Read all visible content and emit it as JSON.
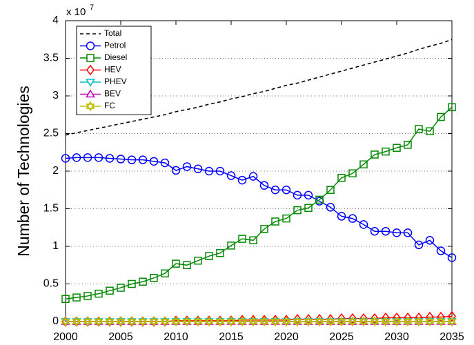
{
  "chart_data": {
    "type": "line",
    "y_label": "Number of Technologies",
    "y_multiplier": {
      "base": "x 10",
      "exponent": "7"
    },
    "x": [
      2000,
      2001,
      2002,
      2003,
      2004,
      2005,
      2006,
      2007,
      2008,
      2009,
      2010,
      2011,
      2012,
      2013,
      2014,
      2015,
      2016,
      2017,
      2018,
      2019,
      2020,
      2021,
      2022,
      2023,
      2024,
      2025,
      2026,
      2027,
      2028,
      2029,
      2030,
      2031,
      2032,
      2033,
      2034,
      2035
    ],
    "xlim": [
      2000,
      2035
    ],
    "xticks": [
      2000,
      2005,
      2010,
      2015,
      2020,
      2025,
      2030,
      2035
    ],
    "ylim": [
      0,
      4
    ],
    "yticks": [
      0,
      0.5,
      1,
      1.5,
      2,
      2.5,
      3,
      3.5,
      4
    ],
    "grid": "y",
    "legend": "top-left",
    "series": [
      {
        "name": "Total",
        "color": "#000000",
        "marker": "none",
        "dashed": true,
        "values": [
          2.48,
          2.51,
          2.54,
          2.57,
          2.6,
          2.63,
          2.66,
          2.69,
          2.72,
          2.75,
          2.79,
          2.82,
          2.85,
          2.89,
          2.92,
          2.96,
          2.99,
          3.03,
          3.06,
          3.1,
          3.14,
          3.17,
          3.21,
          3.25,
          3.29,
          3.33,
          3.37,
          3.41,
          3.45,
          3.49,
          3.53,
          3.57,
          3.62,
          3.66,
          3.7,
          3.75
        ]
      },
      {
        "name": "Petrol",
        "color": "#0000ff",
        "marker": "circle",
        "dashed": false,
        "values": [
          2.17,
          2.18,
          2.18,
          2.18,
          2.17,
          2.16,
          2.15,
          2.15,
          2.13,
          2.11,
          2.01,
          2.06,
          2.03,
          2.0,
          2.0,
          1.94,
          1.88,
          1.93,
          1.81,
          1.75,
          1.75,
          1.68,
          1.68,
          1.6,
          1.52,
          1.4,
          1.37,
          1.29,
          1.2,
          1.2,
          1.18,
          1.18,
          1.02,
          1.08,
          0.94,
          0.85
        ]
      },
      {
        "name": "Diesel",
        "color": "#008a00",
        "marker": "square",
        "dashed": false,
        "values": [
          0.3,
          0.32,
          0.34,
          0.37,
          0.41,
          0.45,
          0.5,
          0.53,
          0.58,
          0.64,
          0.77,
          0.75,
          0.81,
          0.87,
          0.91,
          1.01,
          1.1,
          1.08,
          1.23,
          1.33,
          1.37,
          1.48,
          1.51,
          1.62,
          1.75,
          1.91,
          1.97,
          2.09,
          2.22,
          2.26,
          2.31,
          2.35,
          2.56,
          2.53,
          2.72,
          2.85
        ]
      },
      {
        "name": "HEV",
        "color": "#ff0000",
        "marker": "diamond",
        "dashed": false,
        "values": [
          0,
          0,
          0,
          0,
          0,
          0,
          0,
          0,
          0,
          0,
          0.01,
          0.01,
          0.01,
          0.01,
          0.01,
          0.01,
          0.02,
          0.02,
          0.02,
          0.02,
          0.02,
          0.03,
          0.03,
          0.03,
          0.03,
          0.04,
          0.04,
          0.04,
          0.04,
          0.05,
          0.05,
          0.05,
          0.05,
          0.06,
          0.06,
          0.07
        ]
      },
      {
        "name": "PHEV",
        "color": "#00bfbf",
        "marker": "triangle-down",
        "dashed": false,
        "values": [
          0,
          0,
          0,
          0,
          0,
          0,
          0,
          0,
          0,
          0,
          0,
          0,
          0,
          0,
          0,
          0,
          0,
          0,
          0,
          0,
          0,
          0,
          0,
          0,
          0,
          0,
          0,
          0,
          0,
          0,
          0,
          0,
          0,
          0,
          0,
          0
        ]
      },
      {
        "name": "BEV",
        "color": "#bf00bf",
        "marker": "triangle-up",
        "dashed": false,
        "values": [
          0,
          0,
          0,
          0,
          0,
          0,
          0,
          0,
          0,
          0,
          0,
          0,
          0,
          0,
          0,
          0,
          0,
          0,
          0,
          0,
          0,
          0,
          0,
          0,
          0,
          0,
          0,
          0,
          0,
          0,
          0,
          0,
          0,
          0,
          0,
          0
        ]
      },
      {
        "name": "FC",
        "color": "#bfbf00",
        "marker": "hexagram",
        "dashed": false,
        "values": [
          0,
          0,
          0,
          0,
          0,
          0,
          0,
          0,
          0,
          0,
          0,
          0,
          0,
          0,
          0,
          0,
          0,
          0,
          0,
          0,
          0,
          0,
          0,
          0,
          0,
          0,
          0,
          0,
          0,
          0,
          0,
          0,
          0,
          0,
          0,
          0
        ]
      }
    ]
  }
}
